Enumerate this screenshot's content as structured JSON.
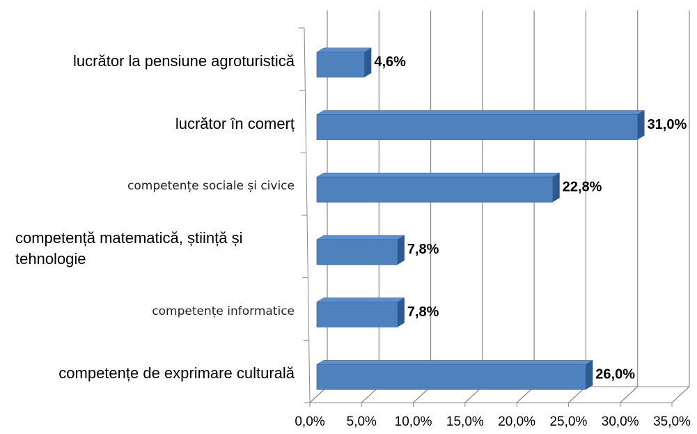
{
  "chart_data": {
    "type": "bar",
    "orientation": "horizontal",
    "categories": [
      "lucrător la pensiune agroturistică",
      "lucrător în comerț",
      "competențe sociale și civice",
      "competență matematică, știință și tehnologie",
      "competențe informatice",
      "competențe de exprimare culturală"
    ],
    "values": [
      4.6,
      31.0,
      22.8,
      7.8,
      7.8,
      26.0
    ],
    "value_labels": [
      "4,6%",
      "31,0%",
      "22,8%",
      "7,8%",
      "7,8%",
      "26,0%"
    ],
    "color": "#4f81bd",
    "xlim": [
      0,
      35
    ],
    "xticks": [
      {
        "value": 0,
        "label": "0,0%"
      },
      {
        "value": 5,
        "label": "5,0%"
      },
      {
        "value": 10,
        "label": "10,0%"
      },
      {
        "value": 15,
        "label": "15,0%"
      },
      {
        "value": 20,
        "label": "20,0%"
      },
      {
        "value": 25,
        "label": "25,0%"
      },
      {
        "value": 30,
        "label": "30,0%"
      },
      {
        "value": 35,
        "label": "35,0%"
      }
    ],
    "grid": true
  }
}
